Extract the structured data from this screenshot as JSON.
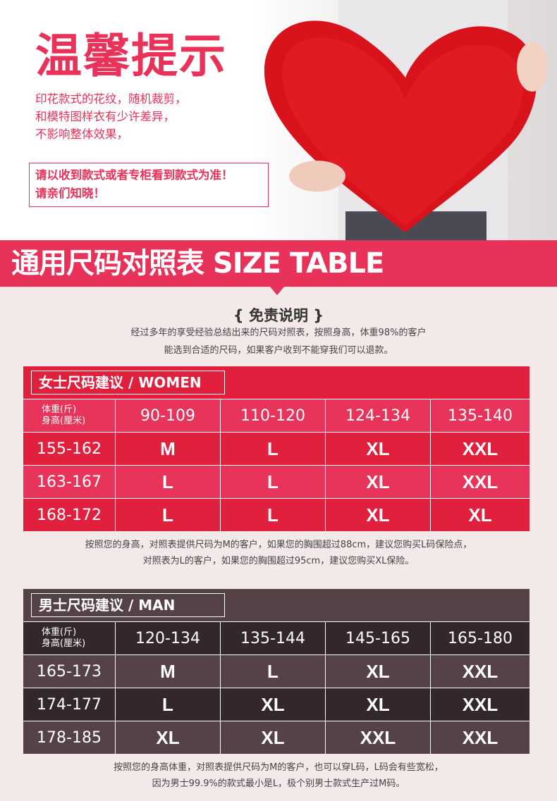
{
  "banner": {
    "title": "温馨提示",
    "lines": [
      "印花款式的花纹，随机裁剪，",
      "和模特图样衣有少许差异，",
      "不影响整体效果，"
    ],
    "notice": [
      "请以收到款式或者专柜看到款式为准！",
      "请亲们知晓！"
    ]
  },
  "section_title": "通用尺码对照表 SIZE TABLE",
  "disclaimer": {
    "title": "{ 免责说明 }",
    "lines": [
      "经过多年的享受经验总结出来的尺码对照表，按照身高，体重98%的客户",
      "能选到合适的尺码，如果客户收到不能穿我们可以退款。"
    ]
  },
  "women": {
    "caption": "女士尺码建议 / WOMEN",
    "corner": [
      "体重(斤)",
      "身高(厘米)"
    ],
    "weights": [
      "90-109",
      "110-120",
      "124-134",
      "135-140"
    ],
    "rows": [
      {
        "height": "155-162",
        "sizes": [
          "M",
          "L",
          "XL",
          "XXL"
        ]
      },
      {
        "height": "163-167",
        "sizes": [
          "L",
          "L",
          "XL",
          "XXL"
        ]
      },
      {
        "height": "168-172",
        "sizes": [
          "L",
          "L",
          "XL",
          "XL"
        ]
      }
    ],
    "notes": [
      "按照您的身高，对照表提供尺码为M的客户，如果您的胸围超过88cm，建议您购买L码保险点，",
      "对照表为L的客户，如果您的胸围超过95cm，建议您购买XL保险。"
    ]
  },
  "men": {
    "caption": "男士尺码建议 / MAN",
    "corner": [
      "体重(斤)",
      "身高(厘米)"
    ],
    "weights": [
      "120-134",
      "135-144",
      "145-165",
      "165-180"
    ],
    "rows": [
      {
        "height": "165-173",
        "sizes": [
          "M",
          "L",
          "XL",
          "XXL"
        ]
      },
      {
        "height": "174-177",
        "sizes": [
          "L",
          "XL",
          "XL",
          "XXL"
        ]
      },
      {
        "height": "178-185",
        "sizes": [
          "XL",
          "XL",
          "XXL",
          "XXL"
        ]
      }
    ],
    "notes": [
      "按照您的身高体重，对照表提供尺码为M的客户，也可以穿L码，L码会有些宽松，",
      "因为男士99.9%的款式最小是L，极个别男士款式生产过M码。"
    ]
  },
  "colors": {
    "accent": "#e8325a",
    "women_dark": "#e1203e",
    "women_light": "#e8335a",
    "men_dark": "#33272a",
    "men_light": "#554247",
    "background": "#f4e9e9"
  }
}
